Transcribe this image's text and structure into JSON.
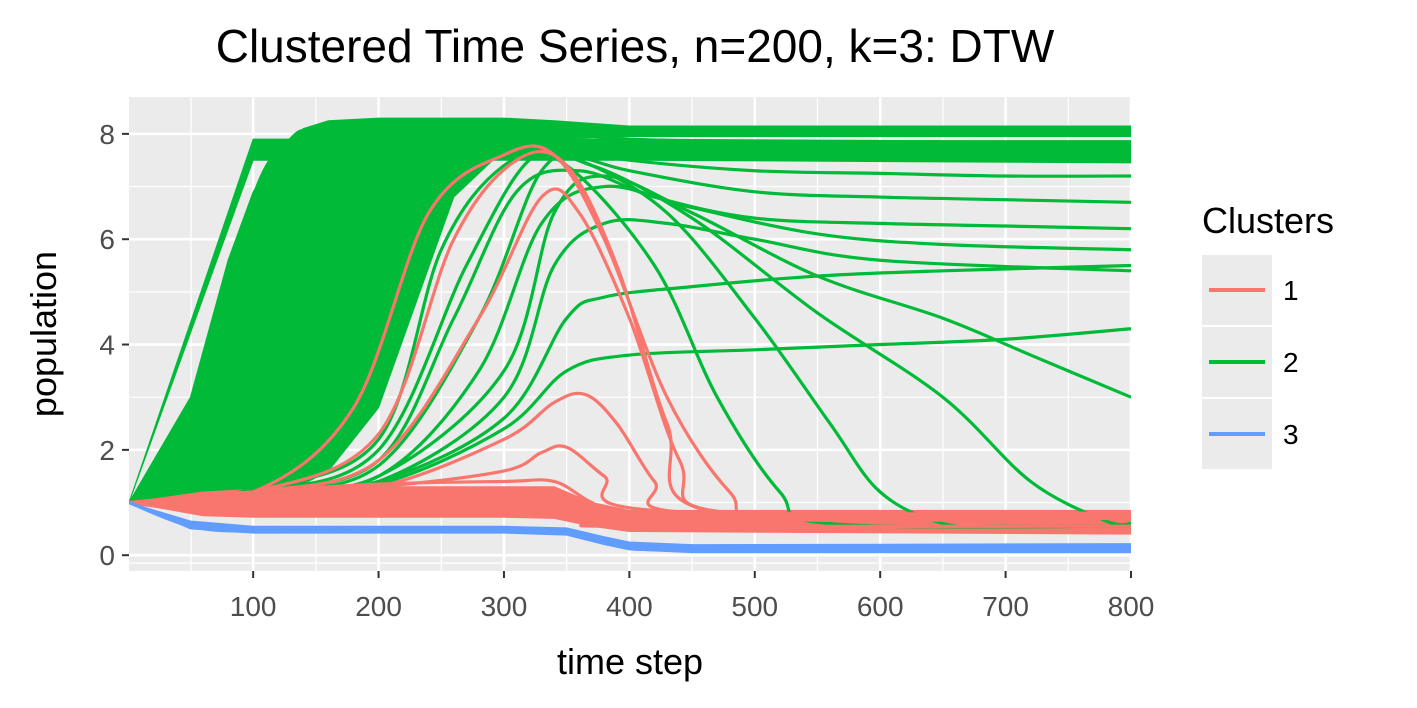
{
  "chart_data": {
    "type": "line",
    "title": "Clustered Time Series, n=200, k=3: DTW",
    "xlabel": "time step",
    "ylabel": "population",
    "xlim": [
      1,
      800
    ],
    "ylim": [
      -0.3,
      8.7
    ],
    "x_ticks": [
      100,
      200,
      300,
      400,
      500,
      600,
      700,
      800
    ],
    "y_ticks": [
      0,
      2,
      4,
      6,
      8
    ],
    "grid": true,
    "legend": {
      "title": "Clusters",
      "placement": "right",
      "entries": [
        {
          "label": "1",
          "color": "#F8766D"
        },
        {
          "label": "2",
          "color": "#00BA38"
        },
        {
          "label": "3",
          "color": "#619CFF"
        }
      ]
    },
    "series_count": 200,
    "colors": {
      "panel": "#EBEBEB",
      "grid": "#FFFFFF",
      "cluster1": "#F8766D",
      "cluster2": "#00BA38",
      "cluster3": "#619CFF"
    },
    "series": [
      {
        "name": "2",
        "x": [
          1,
          50,
          100,
          130,
          150,
          200,
          300,
          350,
          400,
          450,
          500,
          600,
          700,
          800
        ],
        "values": [
          1,
          2.5,
          6.8,
          7.9,
          8.1,
          8.25,
          8.25,
          8.15,
          8.05,
          8.05,
          8.05,
          8.05,
          8.05,
          8.05
        ]
      },
      {
        "name": "2",
        "x": [
          1,
          50,
          100,
          140,
          180,
          250,
          300,
          350,
          400,
          500,
          600,
          700,
          800
        ],
        "values": [
          1,
          1.5,
          3.5,
          6.5,
          7.9,
          8.1,
          8.1,
          8.0,
          7.9,
          7.85,
          7.85,
          7.85,
          7.85
        ]
      },
      {
        "name": "2",
        "x": [
          1,
          100,
          150,
          200,
          250,
          300,
          350,
          400,
          500,
          600,
          700,
          800
        ],
        "values": [
          1,
          1.3,
          3.0,
          6.5,
          7.6,
          7.8,
          7.7,
          7.5,
          7.3,
          7.25,
          7.2,
          7.2
        ]
      },
      {
        "name": "2",
        "x": [
          1,
          100,
          200,
          250,
          300,
          350,
          400,
          500,
          600,
          700,
          800
        ],
        "values": [
          1,
          1.25,
          2.2,
          5.8,
          7.4,
          7.6,
          7.3,
          6.9,
          6.8,
          6.75,
          6.7
        ]
      },
      {
        "name": "2",
        "x": [
          1,
          100,
          200,
          260,
          310,
          360,
          420,
          500,
          600,
          700,
          800
        ],
        "values": [
          1,
          1.2,
          1.8,
          4.5,
          6.9,
          7.3,
          6.8,
          6.4,
          6.3,
          6.25,
          6.2
        ]
      },
      {
        "name": "2",
        "x": [
          1,
          100,
          200,
          280,
          330,
          380,
          450,
          550,
          650,
          800
        ],
        "values": [
          1,
          1.2,
          1.5,
          3.5,
          6.3,
          7.0,
          6.6,
          6.1,
          5.9,
          5.8
        ]
      },
      {
        "name": "2",
        "x": [
          1,
          100,
          200,
          300,
          340,
          380,
          430,
          500,
          600,
          800
        ],
        "values": [
          1,
          1.2,
          1.4,
          3.0,
          5.5,
          6.3,
          6.3,
          6.0,
          5.6,
          5.4
        ]
      },
      {
        "name": "2",
        "x": [
          1,
          100,
          200,
          300,
          350,
          380,
          450,
          550,
          650,
          800
        ],
        "values": [
          1,
          1.2,
          1.4,
          2.6,
          4.5,
          4.9,
          5.1,
          5.3,
          5.4,
          5.5
        ]
      },
      {
        "name": "2",
        "x": [
          1,
          100,
          200,
          300,
          350,
          400,
          500,
          600,
          700,
          800
        ],
        "values": [
          1,
          1.2,
          1.35,
          2.4,
          3.5,
          3.8,
          3.9,
          4.0,
          4.1,
          4.3
        ]
      },
      {
        "name": "2",
        "x": [
          1,
          100,
          200,
          300,
          340,
          380,
          450,
          550,
          650,
          720,
          800
        ],
        "values": [
          1,
          1.2,
          1.5,
          3.5,
          6.5,
          7.2,
          6.5,
          5.3,
          4.5,
          3.8,
          3.0
        ]
      },
      {
        "name": "2",
        "x": [
          1,
          100,
          200,
          280,
          330,
          370,
          450,
          550,
          650,
          720,
          780,
          800
        ],
        "values": [
          1,
          1.2,
          1.7,
          4.5,
          7.3,
          7.4,
          6.4,
          4.6,
          3.0,
          1.4,
          0.65,
          0.6
        ]
      },
      {
        "name": "2",
        "x": [
          1,
          100,
          200,
          270,
          320,
          360,
          430,
          500,
          560,
          600,
          650,
          700,
          800
        ],
        "values": [
          1,
          1.2,
          2.0,
          5.5,
          7.5,
          7.5,
          6.5,
          4.5,
          2.5,
          1.2,
          0.6,
          0.55,
          0.55
        ]
      },
      {
        "name": "2",
        "x": [
          1,
          100,
          180,
          250,
          300,
          350,
          420,
          470,
          520,
          560,
          800
        ],
        "values": [
          1,
          1.2,
          2.5,
          6.5,
          7.6,
          7.4,
          5.5,
          3.0,
          1.2,
          0.6,
          0.55
        ]
      },
      {
        "name": "1",
        "x": [
          1,
          100,
          180,
          240,
          300,
          340,
          380,
          430,
          480,
          520,
          800
        ],
        "values": [
          1,
          1.2,
          2.8,
          6.5,
          7.6,
          7.6,
          6.0,
          3.0,
          1.2,
          0.7,
          0.7
        ]
      },
      {
        "name": "1",
        "x": [
          1,
          100,
          200,
          260,
          310,
          350,
          390,
          430,
          470,
          800
        ],
        "values": [
          1,
          1.2,
          2.3,
          6.0,
          7.5,
          7.4,
          5.5,
          2.5,
          0.8,
          0.75
        ]
      },
      {
        "name": "1",
        "x": [
          1,
          100,
          200,
          280,
          330,
          360,
          400,
          440,
          480,
          800
        ],
        "values": [
          1,
          1.2,
          1.8,
          4.5,
          6.8,
          6.5,
          4.5,
          1.8,
          0.8,
          0.75
        ]
      },
      {
        "name": "1",
        "x": [
          1,
          100,
          200,
          300,
          340,
          365,
          390,
          420,
          450,
          800
        ],
        "values": [
          1,
          1.2,
          1.3,
          2.2,
          2.9,
          3.05,
          2.5,
          1.4,
          0.8,
          0.8
        ]
      },
      {
        "name": "1",
        "x": [
          1,
          100,
          200,
          300,
          330,
          350,
          380,
          420,
          800
        ],
        "values": [
          1,
          1.2,
          1.3,
          1.6,
          1.95,
          2.05,
          1.5,
          0.85,
          0.8
        ]
      },
      {
        "name": "1",
        "x": [
          1,
          50,
          100,
          200,
          300,
          340,
          370,
          400,
          800
        ],
        "values": [
          1,
          1.1,
          1.2,
          1.35,
          1.4,
          1.4,
          1.0,
          0.8,
          0.78
        ]
      },
      {
        "name": "1",
        "x": [
          1,
          50,
          100,
          200,
          300,
          340,
          370,
          400,
          800
        ],
        "values": [
          1,
          0.85,
          0.8,
          0.8,
          0.8,
          0.8,
          0.6,
          0.55,
          0.55
        ]
      },
      {
        "name": "3",
        "x": [
          1,
          50,
          100,
          200,
          300,
          350,
          380,
          400,
          450,
          800
        ],
        "values": [
          1,
          0.6,
          0.5,
          0.5,
          0.5,
          0.48,
          0.3,
          0.2,
          0.15,
          0.15
        ]
      },
      {
        "name": "3",
        "x": [
          1,
          50,
          100,
          200,
          300,
          350,
          380,
          400,
          450,
          800
        ],
        "values": [
          1,
          0.55,
          0.45,
          0.45,
          0.45,
          0.42,
          0.25,
          0.15,
          0.1,
          0.1
        ]
      }
    ]
  }
}
